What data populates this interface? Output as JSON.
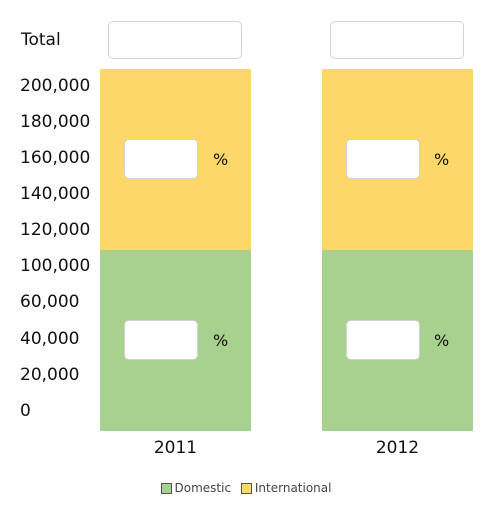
{
  "total_label": "Total",
  "percent_sign": "%",
  "colors": {
    "domestic": "#a8d08e",
    "international": "#fdd76a"
  },
  "chart_data": {
    "type": "bar",
    "stacked": true,
    "categories": [
      "2011",
      "2012"
    ],
    "y_tick_labels": [
      "200,000",
      "180,000",
      "160,000",
      "140,000",
      "120,000",
      "100,000",
      "60,000",
      "40,000",
      "20,000",
      "0"
    ],
    "series": [
      {
        "name": "Domestic",
        "color": "#a8d08e",
        "values": [
          100000,
          100000
        ]
      },
      {
        "name": "International",
        "color": "#fdd76a",
        "values": [
          100000,
          100000
        ]
      }
    ],
    "legend": [
      "Domestic",
      "International"
    ],
    "legend_position": "bottom"
  },
  "inputs": {
    "total_2011": "",
    "total_2012": "",
    "intl_pct_2011": "",
    "intl_pct_2012": "",
    "dom_pct_2011": "",
    "dom_pct_2012": ""
  }
}
